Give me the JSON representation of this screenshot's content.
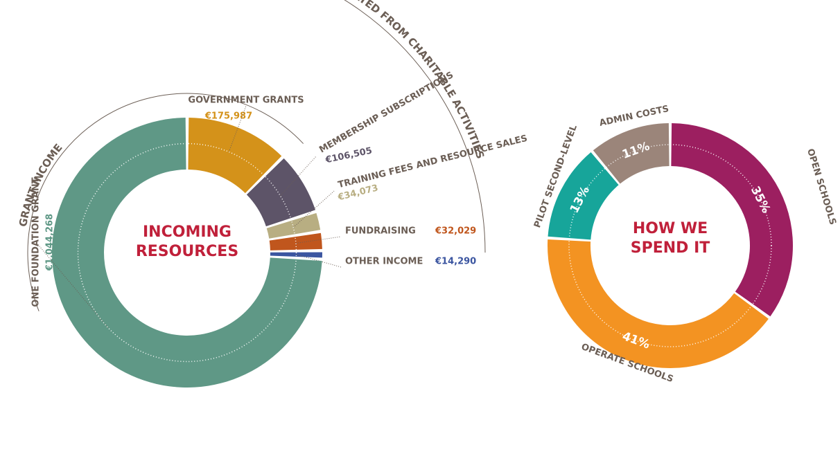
{
  "chart_data": [
    {
      "type": "pie",
      "title": "INCOMING RESOURCES",
      "groups": [
        "GRANT INCOME",
        "INCOME GENERATED FROM CHARITABLE ACTIVITIES"
      ],
      "categories": [
        "GOVERNMENT GRANTS",
        "MEMBERSHIP SUBSCRIPTIONS",
        "TRAINING FEES AND RESOURCE SALES",
        "FUNDRAISING",
        "OTHER INCOME",
        "ONE FOUNDATION GRANT"
      ],
      "values": [
        175987,
        106505,
        34073,
        32029,
        14290,
        1044268
      ],
      "value_labels": [
        "€175,987",
        "€106,505",
        "€34,073",
        "€32,029",
        "€14,290",
        "€1,044,268"
      ],
      "colors": [
        "#d4921a",
        "#5d5468",
        "#b8ae82",
        "#c0561d",
        "#3b55a0",
        "#5f9886"
      ]
    },
    {
      "type": "pie",
      "title": "HOW WE SPEND IT",
      "categories": [
        "OPEN SCHOOLS",
        "OPERATE SCHOOLS",
        "PILOT SECOND-LEVEL",
        "ADMIN COSTS"
      ],
      "values": [
        35,
        41,
        13,
        11
      ],
      "value_labels": [
        "35%",
        "41%",
        "13%",
        "11%"
      ],
      "colors": [
        "#9c1f60",
        "#f39322",
        "#17a59a",
        "#9b857a"
      ]
    }
  ]
}
